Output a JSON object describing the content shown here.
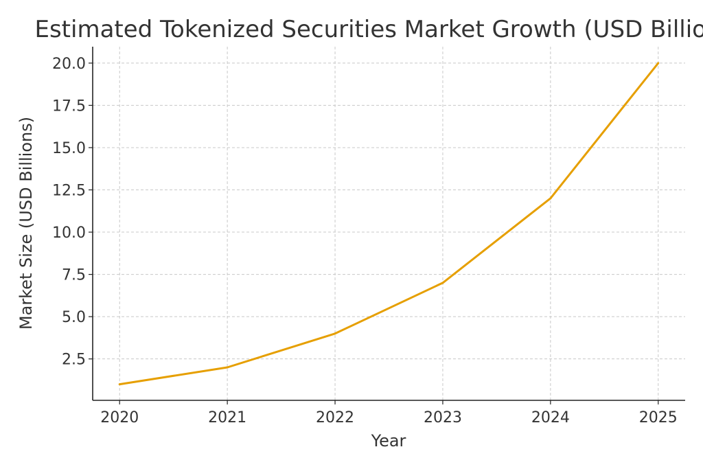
{
  "chart_data": {
    "type": "line",
    "title": "Estimated Tokenized Securities Market Growth (USD Billions)",
    "xlabel": "Year",
    "ylabel": "Market Size (USD Billions)",
    "x": [
      2020,
      2021,
      2022,
      2023,
      2024,
      2025
    ],
    "series": [
      {
        "name": "Market Size",
        "values": [
          1,
          2,
          4,
          7,
          12,
          20
        ],
        "color": "#E69F00"
      }
    ],
    "xticks": [
      "2020",
      "2021",
      "2022",
      "2023",
      "2024",
      "2025"
    ],
    "yticks": [
      "2.5",
      "5.0",
      "7.5",
      "10.0",
      "12.5",
      "15.0",
      "17.5",
      "20.0"
    ],
    "xlim": [
      2019.75,
      2025.25
    ],
    "ylim": [
      0.05,
      20.97
    ],
    "grid": true,
    "legend": "none"
  }
}
